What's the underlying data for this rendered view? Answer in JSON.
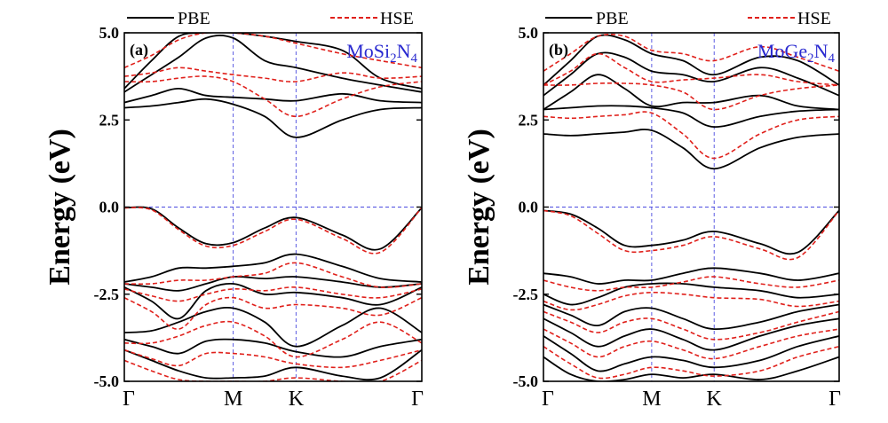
{
  "colors": {
    "pbe": "#000000",
    "hse": "#e0201b",
    "guide": "#4a4adf",
    "material": "#2a2ad0"
  },
  "chart_data": [
    {
      "type": "line",
      "panel_label": "(a)",
      "material": {
        "base": "MoSi",
        "s1": "2",
        "mid": "N",
        "s2": "4"
      },
      "ylabel": "Energy (eV)",
      "ylim": [
        -5.0,
        5.0
      ],
      "yticks": [
        "5.0",
        "2.5",
        "0.0",
        "-2.5",
        "-5.0"
      ],
      "ytick_values": [
        5.0,
        2.5,
        0.0,
        -2.5,
        -5.0
      ],
      "kpoints": [
        {
          "label": "Γ",
          "x": 0
        },
        {
          "label": "M",
          "x": 1
        },
        {
          "label": "K",
          "x": 1.577
        },
        {
          "label": "Γ",
          "x": 2.732
        }
      ],
      "legend": [
        "PBE",
        "HSE"
      ],
      "legend_position": "top",
      "grid": false,
      "x": [
        0,
        0.25,
        0.5,
        0.75,
        1.0,
        1.289,
        1.577,
        2.0,
        2.35,
        2.732
      ],
      "series": [
        {
          "name": "PBE",
          "style": "solid",
          "bands": [
            [
              -0.02,
              -0.05,
              -0.6,
              -1.05,
              -1.02,
              -0.6,
              -0.3,
              -0.8,
              -1.2,
              -0.02
            ],
            [
              -2.15,
              -2.0,
              -1.75,
              -1.75,
              -1.7,
              -1.6,
              -1.35,
              -1.7,
              -2.05,
              -2.15
            ],
            [
              -2.2,
              -2.3,
              -2.4,
              -2.2,
              -2.0,
              -2.05,
              -2.0,
              -2.15,
              -2.3,
              -2.2
            ],
            [
              -2.3,
              -2.7,
              -3.2,
              -2.4,
              -2.2,
              -2.5,
              -2.45,
              -2.6,
              -2.8,
              -2.3
            ],
            [
              -3.6,
              -3.55,
              -3.3,
              -3.0,
              -2.9,
              -3.3,
              -4.0,
              -3.4,
              -2.9,
              -3.6
            ],
            [
              -3.8,
              -4.0,
              -4.2,
              -3.85,
              -3.8,
              -3.9,
              -4.15,
              -4.3,
              -4.0,
              -3.8
            ],
            [
              -4.1,
              -4.4,
              -4.7,
              -4.9,
              -4.9,
              -4.85,
              -4.6,
              -4.85,
              -4.9,
              -4.1
            ],
            [
              2.85,
              2.9,
              3.0,
              3.1,
              2.95,
              2.6,
              2.0,
              2.5,
              2.8,
              2.85
            ],
            [
              3.0,
              3.2,
              3.4,
              3.2,
              3.15,
              3.1,
              3.05,
              3.25,
              3.05,
              3.0
            ],
            [
              3.3,
              3.8,
              4.3,
              4.85,
              4.85,
              4.2,
              4.0,
              3.7,
              3.5,
              3.3
            ],
            [
              3.4,
              4.2,
              4.9,
              5.0,
              5.0,
              4.9,
              4.75,
              4.5,
              3.7,
              3.4
            ]
          ]
        },
        {
          "name": "HSE",
          "style": "dashed",
          "bands": [
            [
              -0.02,
              -0.08,
              -0.65,
              -1.12,
              -1.1,
              -0.7,
              -0.35,
              -0.9,
              -1.3,
              -0.02
            ],
            [
              -2.2,
              -2.2,
              -2.1,
              -2.1,
              -2.0,
              -1.9,
              -1.6,
              -2.0,
              -2.3,
              -2.2
            ],
            [
              -2.35,
              -2.55,
              -2.7,
              -2.5,
              -2.35,
              -2.4,
              -2.3,
              -2.5,
              -2.6,
              -2.35
            ],
            [
              -2.6,
              -3.0,
              -3.5,
              -2.8,
              -2.6,
              -2.9,
              -2.8,
              -2.9,
              -3.1,
              -2.6
            ],
            [
              -3.9,
              -3.9,
              -3.7,
              -3.4,
              -3.3,
              -3.7,
              -4.3,
              -3.8,
              -3.3,
              -3.9
            ],
            [
              -4.1,
              -4.35,
              -4.55,
              -4.2,
              -4.2,
              -4.3,
              -4.5,
              -4.6,
              -4.4,
              -4.1
            ],
            [
              -4.4,
              -4.7,
              -4.95,
              -5.0,
              -5.0,
              -5.0,
              -4.9,
              -5.0,
              -5.0,
              -4.4
            ],
            [
              3.6,
              3.6,
              3.7,
              3.75,
              3.6,
              3.1,
              2.6,
              3.1,
              3.45,
              3.6
            ],
            [
              3.75,
              3.85,
              4.0,
              3.9,
              3.8,
              3.7,
              3.6,
              3.85,
              3.7,
              3.75
            ],
            [
              4.0,
              4.35,
              4.8,
              5.0,
              5.0,
              4.9,
              4.7,
              4.4,
              4.2,
              4.0
            ]
          ]
        }
      ]
    },
    {
      "type": "line",
      "panel_label": "(b)",
      "material": {
        "base": "MoGe",
        "s1": "2",
        "mid": "N",
        "s2": "4"
      },
      "ylabel": "Energy (eV)",
      "ylim": [
        -5.0,
        5.0
      ],
      "yticks": [
        "5.0",
        "2.5",
        "0.0",
        "-2.5",
        "-5.0"
      ],
      "ytick_values": [
        5.0,
        2.5,
        0.0,
        -2.5,
        -5.0
      ],
      "kpoints": [
        {
          "label": "Γ",
          "x": 0
        },
        {
          "label": "M",
          "x": 1
        },
        {
          "label": "K",
          "x": 1.577
        },
        {
          "label": "Γ",
          "x": 2.732
        }
      ],
      "legend": [
        "PBE",
        "HSE"
      ],
      "legend_position": "top",
      "grid": false,
      "x": [
        0,
        0.25,
        0.5,
        0.75,
        1.0,
        1.289,
        1.577,
        2.0,
        2.35,
        2.732
      ],
      "series": [
        {
          "name": "PBE",
          "style": "solid",
          "bands": [
            [
              -0.1,
              -0.2,
              -0.6,
              -1.1,
              -1.1,
              -0.95,
              -0.7,
              -1.05,
              -1.3,
              -0.1
            ],
            [
              -1.9,
              -2.0,
              -2.2,
              -2.1,
              -2.1,
              -1.9,
              -1.75,
              -1.9,
              -2.1,
              -1.9
            ],
            [
              -2.5,
              -2.8,
              -2.6,
              -2.3,
              -2.2,
              -2.2,
              -2.3,
              -2.4,
              -2.6,
              -2.5
            ],
            [
              -2.8,
              -3.1,
              -3.4,
              -3.0,
              -2.9,
              -3.2,
              -3.5,
              -3.3,
              -3.0,
              -2.8
            ],
            [
              -3.2,
              -3.6,
              -4.0,
              -3.7,
              -3.5,
              -3.8,
              -4.1,
              -3.7,
              -3.4,
              -3.2
            ],
            [
              -3.7,
              -4.2,
              -4.7,
              -4.5,
              -4.3,
              -4.4,
              -4.6,
              -4.4,
              -4.0,
              -3.7
            ],
            [
              -4.3,
              -4.8,
              -5.0,
              -4.95,
              -4.8,
              -4.9,
              -4.8,
              -4.95,
              -4.7,
              -4.3
            ],
            [
              2.1,
              2.05,
              2.1,
              2.15,
              2.2,
              1.7,
              1.1,
              1.7,
              2.0,
              2.1
            ],
            [
              2.8,
              2.85,
              2.9,
              2.9,
              2.85,
              2.7,
              2.3,
              2.6,
              2.75,
              2.8
            ],
            [
              2.8,
              3.3,
              3.8,
              3.4,
              2.9,
              3.0,
              3.0,
              3.2,
              2.9,
              2.8
            ],
            [
              3.2,
              3.8,
              4.4,
              4.3,
              3.9,
              3.8,
              3.6,
              4.0,
              3.7,
              3.2
            ],
            [
              3.5,
              4.2,
              4.9,
              4.8,
              4.4,
              4.2,
              3.8,
              4.3,
              4.2,
              3.5
            ]
          ]
        },
        {
          "name": "HSE",
          "style": "dashed",
          "bands": [
            [
              -0.1,
              -0.25,
              -0.75,
              -1.25,
              -1.25,
              -1.1,
              -0.85,
              -1.2,
              -1.45,
              -0.1
            ],
            [
              -2.1,
              -2.3,
              -2.4,
              -2.3,
              -2.3,
              -2.15,
              -2.0,
              -2.2,
              -2.3,
              -2.1
            ],
            [
              -2.7,
              -2.95,
              -2.8,
              -2.55,
              -2.45,
              -2.5,
              -2.6,
              -2.65,
              -2.85,
              -2.7
            ],
            [
              -3.0,
              -3.3,
              -3.6,
              -3.3,
              -3.2,
              -3.5,
              -3.8,
              -3.6,
              -3.3,
              -3.0
            ],
            [
              -3.5,
              -3.9,
              -4.3,
              -4.0,
              -3.85,
              -4.1,
              -4.35,
              -4.0,
              -3.7,
              -3.5
            ],
            [
              -4.0,
              -4.5,
              -4.9,
              -4.8,
              -4.6,
              -4.7,
              -4.85,
              -4.7,
              -4.3,
              -4.0
            ],
            [
              2.6,
              2.55,
              2.6,
              2.65,
              2.7,
              2.1,
              1.4,
              2.1,
              2.5,
              2.6
            ],
            [
              3.5,
              3.5,
              3.55,
              3.55,
              3.5,
              3.3,
              2.8,
              3.2,
              3.4,
              3.5
            ],
            [
              3.5,
              3.9,
              4.4,
              4.0,
              3.6,
              3.65,
              3.7,
              3.8,
              3.6,
              3.5
            ],
            [
              3.9,
              4.4,
              4.9,
              4.9,
              4.5,
              4.4,
              4.2,
              4.6,
              4.3,
              3.9
            ]
          ]
        }
      ]
    }
  ]
}
